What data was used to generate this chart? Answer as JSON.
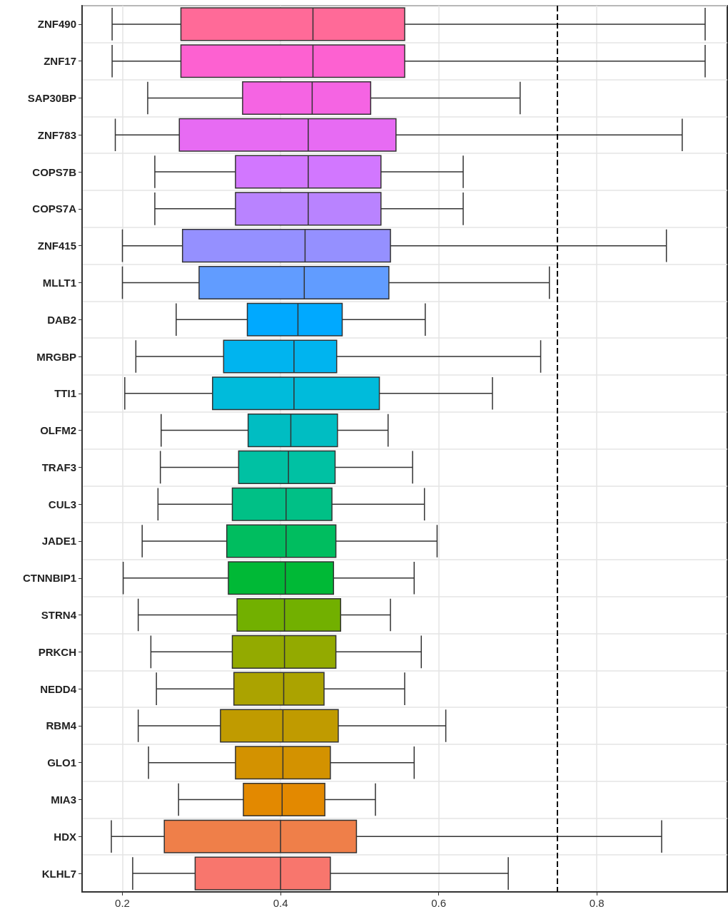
{
  "chart_data": {
    "type": "box",
    "orientation": "horizontal",
    "categories": [
      "ZNF490",
      "ZNF17",
      "SAP30BP",
      "ZNF783",
      "COPS7B",
      "COPS7A",
      "ZNF415",
      "MLLT1",
      "DAB2",
      "MRGBP",
      "TTI1",
      "OLFM2",
      "TRAF3",
      "CUL3",
      "JADE1",
      "CTNNBIP1",
      "STRN4",
      "PRKCH",
      "NEDD4",
      "RBM4",
      "GLO1",
      "MIA3",
      "HDX",
      "KLHL7"
    ],
    "boxes": [
      {
        "low": 0.187,
        "q1": 0.274,
        "median": 0.441,
        "q3": 0.557,
        "high": 0.937
      },
      {
        "low": 0.187,
        "q1": 0.274,
        "median": 0.441,
        "q3": 0.557,
        "high": 0.937
      },
      {
        "low": 0.232,
        "q1": 0.352,
        "median": 0.44,
        "q3": 0.514,
        "high": 0.703
      },
      {
        "low": 0.191,
        "q1": 0.272,
        "median": 0.435,
        "q3": 0.546,
        "high": 0.908
      },
      {
        "low": 0.241,
        "q1": 0.343,
        "median": 0.435,
        "q3": 0.527,
        "high": 0.631
      },
      {
        "low": 0.241,
        "q1": 0.343,
        "median": 0.435,
        "q3": 0.527,
        "high": 0.631
      },
      {
        "low": 0.2,
        "q1": 0.276,
        "median": 0.431,
        "q3": 0.539,
        "high": 0.888
      },
      {
        "low": 0.2,
        "q1": 0.297,
        "median": 0.43,
        "q3": 0.537,
        "high": 0.74
      },
      {
        "low": 0.268,
        "q1": 0.358,
        "median": 0.422,
        "q3": 0.478,
        "high": 0.583
      },
      {
        "low": 0.217,
        "q1": 0.328,
        "median": 0.417,
        "q3": 0.471,
        "high": 0.729
      },
      {
        "low": 0.203,
        "q1": 0.314,
        "median": 0.417,
        "q3": 0.525,
        "high": 0.668
      },
      {
        "low": 0.249,
        "q1": 0.359,
        "median": 0.413,
        "q3": 0.472,
        "high": 0.536
      },
      {
        "low": 0.248,
        "q1": 0.347,
        "median": 0.41,
        "q3": 0.469,
        "high": 0.567
      },
      {
        "low": 0.245,
        "q1": 0.339,
        "median": 0.407,
        "q3": 0.465,
        "high": 0.582
      },
      {
        "low": 0.225,
        "q1": 0.332,
        "median": 0.407,
        "q3": 0.47,
        "high": 0.598
      },
      {
        "low": 0.201,
        "q1": 0.334,
        "median": 0.406,
        "q3": 0.467,
        "high": 0.569
      },
      {
        "low": 0.22,
        "q1": 0.345,
        "median": 0.405,
        "q3": 0.476,
        "high": 0.539
      },
      {
        "low": 0.236,
        "q1": 0.339,
        "median": 0.405,
        "q3": 0.47,
        "high": 0.578
      },
      {
        "low": 0.243,
        "q1": 0.341,
        "median": 0.404,
        "q3": 0.455,
        "high": 0.557
      },
      {
        "low": 0.22,
        "q1": 0.324,
        "median": 0.403,
        "q3": 0.473,
        "high": 0.609
      },
      {
        "low": 0.233,
        "q1": 0.343,
        "median": 0.403,
        "q3": 0.463,
        "high": 0.569
      },
      {
        "low": 0.271,
        "q1": 0.353,
        "median": 0.402,
        "q3": 0.456,
        "high": 0.52
      },
      {
        "low": 0.186,
        "q1": 0.253,
        "median": 0.4,
        "q3": 0.496,
        "high": 0.882
      },
      {
        "low": 0.213,
        "q1": 0.292,
        "median": 0.4,
        "q3": 0.463,
        "high": 0.688
      }
    ],
    "colors": [
      "#FF6A98",
      "#FD61D1",
      "#F564E3",
      "#E76BF3",
      "#D277FF",
      "#B983FF",
      "#9590FF",
      "#619CFF",
      "#00A9FF",
      "#00B4EF",
      "#00BBDB",
      "#00BDC2",
      "#00C1A3",
      "#00C086",
      "#00BD5F",
      "#00B936",
      "#72B000",
      "#93AA00",
      "#ABA300",
      "#C09B00",
      "#D39200",
      "#E38900",
      "#EF7F49",
      "#F8766D"
    ],
    "xlim": [
      0.149,
      0.965
    ],
    "xticks": [
      0.2,
      0.4,
      0.6,
      0.8
    ],
    "grid": true,
    "ref_lines": [
      {
        "axis": "x",
        "value": 0.75,
        "line_style": "dashed",
        "color": "#000000"
      }
    ]
  }
}
